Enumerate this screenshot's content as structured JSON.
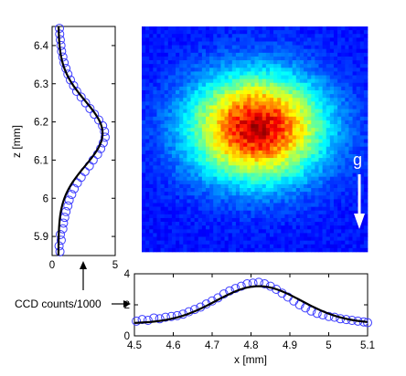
{
  "chart_data": [
    {
      "type": "image",
      "title": "",
      "colormap": "jet",
      "annotations": [
        "g"
      ],
      "arrow_direction": "down"
    },
    {
      "type": "line",
      "orientation": "vertical",
      "xlabel": "",
      "ylabel": "z [mm]",
      "xlim": [
        0,
        5
      ],
      "ylim": [
        5.85,
        6.45
      ],
      "xticks": [
        "0",
        "5"
      ],
      "yticks": [
        "5.9",
        "6",
        "6.1",
        "6.2",
        "6.3",
        "6.4"
      ],
      "series": [
        {
          "style": "circles",
          "color": "#3b3bff",
          "z": [
            5.86,
            5.875,
            5.89,
            5.905,
            5.92,
            5.935,
            5.95,
            5.965,
            5.98,
            5.995,
            6.01,
            6.025,
            6.04,
            6.055,
            6.07,
            6.085,
            6.1,
            6.115,
            6.13,
            6.145,
            6.16,
            6.175,
            6.19,
            6.205,
            6.22,
            6.235,
            6.25,
            6.265,
            6.28,
            6.295,
            6.31,
            6.325,
            6.34,
            6.355,
            6.37,
            6.385,
            6.4,
            6.415,
            6.43,
            6.445
          ],
          "counts": [
            0.62,
            0.55,
            0.72,
            0.65,
            0.85,
            0.9,
            1.0,
            1.1,
            1.25,
            1.35,
            1.55,
            1.75,
            2.0,
            2.3,
            2.6,
            2.95,
            3.25,
            3.6,
            3.85,
            4.05,
            4.2,
            4.15,
            4.0,
            3.7,
            3.35,
            3.0,
            2.65,
            2.3,
            1.95,
            1.7,
            1.45,
            1.25,
            1.1,
            0.95,
            0.85,
            0.75,
            0.7,
            0.65,
            0.6,
            0.58
          ]
        },
        {
          "style": "line",
          "color": "#000000",
          "fit": "gaussian",
          "baseline": 0.5,
          "amplitude": 3.5,
          "center": 6.17,
          "sigma": 0.085
        }
      ]
    },
    {
      "type": "line",
      "xlabel": "x [mm]",
      "ylabel": "",
      "xlim": [
        4.5,
        5.1
      ],
      "ylim": [
        0,
        4
      ],
      "xticks": [
        "4.5",
        "4.6",
        "4.7",
        "4.8",
        "4.9",
        "5",
        "5.1"
      ],
      "yticks": [
        "0",
        "2",
        "4"
      ],
      "series": [
        {
          "style": "circles",
          "color": "#3b3bff",
          "x": [
            4.505,
            4.52,
            4.535,
            4.55,
            4.565,
            4.58,
            4.595,
            4.61,
            4.625,
            4.64,
            4.655,
            4.67,
            4.685,
            4.7,
            4.715,
            4.73,
            4.745,
            4.76,
            4.775,
            4.79,
            4.805,
            4.82,
            4.835,
            4.85,
            4.865,
            4.88,
            4.895,
            4.91,
            4.925,
            4.94,
            4.955,
            4.97,
            4.985,
            5.0,
            5.015,
            5.03,
            5.045,
            5.06,
            5.075,
            5.09,
            5.1
          ],
          "counts": [
            0.95,
            1.05,
            1.0,
            1.15,
            1.1,
            1.2,
            1.25,
            1.3,
            1.4,
            1.55,
            1.7,
            1.85,
            2.05,
            2.25,
            2.45,
            2.7,
            2.9,
            3.05,
            3.2,
            3.35,
            3.4,
            3.45,
            3.35,
            3.2,
            3.0,
            2.75,
            2.5,
            2.25,
            2.0,
            1.8,
            1.6,
            1.45,
            1.35,
            1.25,
            1.2,
            1.1,
            1.05,
            1.0,
            0.95,
            0.9,
            0.85
          ]
        },
        {
          "style": "line",
          "color": "#000000",
          "fit": "gaussian",
          "baseline": 0.8,
          "amplitude": 2.4,
          "center": 4.82,
          "sigma": 0.11
        }
      ]
    }
  ],
  "labels": {
    "g": "g",
    "ccd": "CCD counts/1000"
  },
  "colors": {
    "marker": "#3b3bff",
    "fit": "#000000",
    "arrow": "#ffffff"
  }
}
